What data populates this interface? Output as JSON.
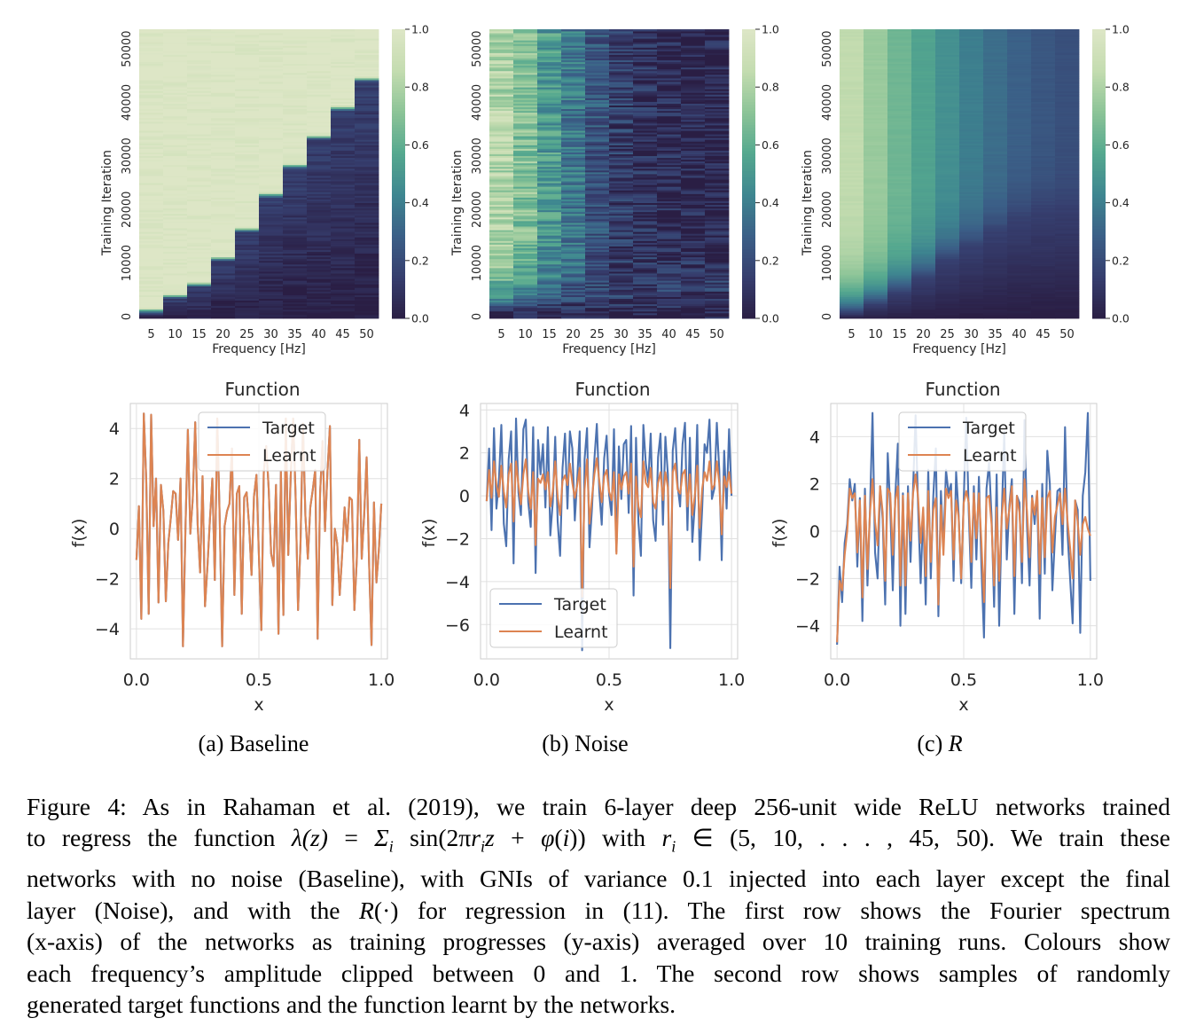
{
  "panels": [
    {
      "id": "baseline",
      "sublabel": "(a) Baseline",
      "spectrum": {
        "type": "heatmap",
        "xlabel": "Frequency [Hz]",
        "ylabel": "Training Iteration",
        "x_ticks": [
          "5",
          "10",
          "15",
          "20",
          "25",
          "30",
          "35",
          "40",
          "45",
          "50"
        ],
        "y_ticks": [
          "0",
          "10000",
          "20000",
          "30000",
          "40000",
          "50000"
        ],
        "colorbar_ticks": [
          "0.0",
          "0.2",
          "0.4",
          "0.6",
          "0.8",
          "1.0"
        ],
        "colormap": [
          "#2a1e44",
          "#363e6e",
          "#3b5f87",
          "#3e8690",
          "#55a88f",
          "#8cc497",
          "#c4dcb0",
          "#dde6c6"
        ],
        "converge_fraction": [
          0.02,
          0.07,
          0.11,
          0.2,
          0.3,
          0.42,
          0.52,
          0.62,
          0.72,
          0.82
        ],
        "final_level": [
          1,
          1,
          1,
          1,
          1,
          1,
          1,
          1,
          1,
          1
        ],
        "noise": 0.05
      },
      "function": {
        "type": "line",
        "title": "Function",
        "xlabel": "x",
        "ylabel": "f(x)",
        "xlim": [
          -0.025,
          1.025
        ],
        "ylim": [
          -5.2,
          5.0
        ],
        "x_ticks": [
          "0.0",
          "0.5",
          "1.0"
        ],
        "y_ticks": [
          "-4",
          "-2",
          "0",
          "2",
          "4"
        ],
        "legend": [
          "Target",
          "Learnt"
        ],
        "legend_loc": "upper center",
        "target": [
          -1.25,
          0.9,
          -3.6,
          4.6,
          1.95,
          -3.4,
          4.55,
          0.1,
          2.0,
          -2.95,
          1.75,
          0.7,
          -2.9,
          -0.6,
          0.4,
          1.5,
          1.4,
          -0.45,
          2.0,
          -4.7,
          -0.05,
          3.95,
          -0.2,
          1.2,
          4.25,
          0.15,
          -1.75,
          2.1,
          -3.1,
          -1.5,
          0.35,
          2.0,
          -2.05,
          4.4,
          0.4,
          -4.7,
          0.1,
          0.7,
          1.0,
          3.2,
          -2.65,
          1.4,
          1.7,
          -3.4,
          1.25,
          1.45,
          0.15,
          -1.85,
          1.3,
          2.15,
          -1.05,
          -4.05,
          2.25,
          3.3,
          1.6,
          -1.0,
          -1.5,
          1.75,
          -4.2,
          2.3,
          -3.45,
          4.4,
          -1.05,
          2.1,
          4.4,
          1.3,
          -3.25,
          -0.6,
          4.2,
          0.5,
          -1.2,
          0.85,
          1.55,
          2.35,
          -4.4,
          1.4,
          3.5,
          -0.1,
          2.25,
          4.1,
          -3.05,
          0.0,
          -0.6,
          -2.65,
          -1.05,
          0.85,
          -0.5,
          1.25,
          1.15,
          -3.25,
          -1.2,
          3.55,
          -1.2,
          0.55,
          2.85,
          -1.35,
          -4.65,
          1.05,
          -2.15,
          -0.85,
          1.0
        ],
        "learnt": [
          -1.25,
          0.9,
          -3.6,
          4.6,
          1.95,
          -3.4,
          4.55,
          0.1,
          2.0,
          -2.95,
          1.75,
          0.7,
          -2.9,
          -0.6,
          0.4,
          1.5,
          1.4,
          -0.45,
          2.0,
          -4.7,
          -0.05,
          3.95,
          -0.2,
          1.2,
          4.25,
          0.15,
          -1.75,
          2.1,
          -3.1,
          -1.5,
          0.35,
          2.0,
          -2.05,
          4.4,
          0.4,
          -4.7,
          0.1,
          0.7,
          1.0,
          3.2,
          -2.65,
          1.4,
          1.7,
          -3.4,
          1.25,
          1.45,
          0.15,
          -1.85,
          1.3,
          2.15,
          -1.05,
          -4.05,
          2.25,
          3.3,
          1.6,
          -1.0,
          -1.5,
          1.75,
          -4.2,
          2.3,
          -3.45,
          4.4,
          -1.05,
          2.1,
          4.4,
          1.3,
          -3.25,
          -0.6,
          4.2,
          0.5,
          -1.2,
          0.85,
          1.55,
          2.35,
          -4.4,
          1.4,
          3.5,
          -0.1,
          2.25,
          4.1,
          -3.05,
          0.0,
          -0.6,
          -2.65,
          -1.05,
          0.85,
          -0.5,
          1.25,
          1.15,
          -3.25,
          -1.2,
          3.55,
          -1.2,
          0.55,
          2.85,
          -1.35,
          -4.65,
          1.05,
          -2.15,
          -0.85,
          1.0
        ]
      }
    },
    {
      "id": "noise",
      "sublabel": "(b) Noise",
      "spectrum": {
        "type": "heatmap",
        "xlabel": "Frequency [Hz]",
        "ylabel": "Training Iteration",
        "x_ticks": [
          "5",
          "10",
          "15",
          "20",
          "25",
          "30",
          "35",
          "40",
          "45",
          "50"
        ],
        "y_ticks": [
          "0",
          "10000",
          "20000",
          "30000",
          "40000",
          "50000"
        ],
        "colorbar_ticks": [
          "0.0",
          "0.2",
          "0.4",
          "0.6",
          "0.8",
          "1.0"
        ],
        "colormap": [
          "#2a1e44",
          "#363e6e",
          "#3b5f87",
          "#3e8690",
          "#55a88f",
          "#8cc497",
          "#c4dcb0",
          "#dde6c6"
        ],
        "converge_fraction": [
          0.03,
          0.04,
          0.05,
          0.06,
          0.07,
          0.08,
          0.09,
          0.1,
          0.11,
          0.12
        ],
        "final_level": [
          0.82,
          0.7,
          0.52,
          0.38,
          0.24,
          0.14,
          0.09,
          0.06,
          0.04,
          0.03
        ],
        "noise": 0.14
      },
      "function": {
        "type": "line",
        "title": "Function",
        "xlabel": "x",
        "ylabel": "f(x)",
        "xlim": [
          -0.025,
          1.025
        ],
        "ylim": [
          -7.6,
          4.3
        ],
        "x_ticks": [
          "0.0",
          "0.5",
          "1.0"
        ],
        "y_ticks": [
          "-6",
          "-4",
          "-2",
          "0",
          "2",
          "4"
        ],
        "legend": [
          "Target",
          "Learnt"
        ],
        "legend_loc": "lower left",
        "target": [
          -0.25,
          2.2,
          -1.6,
          3.15,
          -0.6,
          0.7,
          3.3,
          -1.3,
          -2.35,
          1.7,
          3.0,
          -3.15,
          3.6,
          0.15,
          -0.9,
          3.1,
          3.55,
          -0.3,
          -1.45,
          3.2,
          -3.6,
          2.6,
          1.0,
          2.4,
          -0.55,
          3.2,
          -1.85,
          -0.3,
          2.75,
          -1.2,
          -2.8,
          1.3,
          2.9,
          -0.6,
          3.0,
          2.2,
          -1.15,
          0.8,
          3.0,
          -7.2,
          1.7,
          3.15,
          -2.4,
          -0.6,
          1.7,
          3.35,
          0.2,
          -1.35,
          1.75,
          2.8,
          0.05,
          -0.9,
          3.1,
          -2.6,
          2.3,
          -0.15,
          2.4,
          2.6,
          -0.8,
          3.25,
          -4.65,
          2.7,
          -1.25,
          -2.8,
          3.3,
          1.5,
          0.6,
          2.9,
          -1.15,
          -2.1,
          1.8,
          2.9,
          -1.35,
          2.75,
          1.0,
          -7.1,
          2.1,
          3.15,
          0.45,
          -0.5,
          2.4,
          3.4,
          -1.6,
          2.7,
          -2.15,
          -0.4,
          3.3,
          -3.0,
          -0.65,
          2.4,
          2.0,
          3.55,
          -0.15,
          0.35,
          3.4,
          1.2,
          -3.0,
          2.1,
          -0.6,
          3.1,
          0.0
        ],
        "learnt": [
          -0.25,
          1.2,
          -0.1,
          1.6,
          0.5,
          -0.05,
          1.4,
          0.2,
          -0.55,
          1.0,
          1.5,
          -1.2,
          1.6,
          0.5,
          -0.4,
          1.0,
          1.7,
          0.2,
          -0.6,
          1.1,
          -2.3,
          0.8,
          0.6,
          1.0,
          0.3,
          1.1,
          -0.5,
          0.2,
          1.6,
          -0.05,
          -0.9,
          0.7,
          0.95,
          0.5,
          1.5,
          0.6,
          -0.1,
          0.5,
          1.3,
          -4.7,
          0.3,
          1.7,
          -1.3,
          -0.1,
          1.0,
          1.75,
          0.7,
          -0.3,
          0.9,
          1.2,
          0.2,
          -0.2,
          1.1,
          -2.7,
          1.0,
          0.3,
          0.9,
          1.1,
          0.1,
          1.5,
          -3.3,
          0.9,
          -0.5,
          -1.0,
          1.6,
          0.6,
          0.4,
          1.3,
          -0.3,
          -0.6,
          0.6,
          1.1,
          -0.2,
          1.1,
          0.4,
          -4.3,
          1.1,
          1.5,
          0.3,
          0.1,
          1.0,
          1.2,
          -0.5,
          1.0,
          -0.9,
          0.0,
          1.4,
          -1.5,
          0.3,
          1.1,
          0.7,
          1.6,
          0.3,
          0.5,
          1.6,
          0.6,
          -1.8,
          0.9,
          0.4,
          1.1,
          0.1
        ]
      }
    },
    {
      "id": "R",
      "sublabel_prefix": "(c)",
      "sublabel_symbol": "R",
      "spectrum": {
        "type": "heatmap",
        "xlabel": "Frequency [Hz]",
        "ylabel": "Training Iteration",
        "x_ticks": [
          "5",
          "10",
          "15",
          "20",
          "25",
          "30",
          "35",
          "40",
          "45",
          "50"
        ],
        "y_ticks": [
          "0",
          "10000",
          "20000",
          "30000",
          "40000",
          "50000"
        ],
        "colorbar_ticks": [
          "0.0",
          "0.2",
          "0.4",
          "0.6",
          "0.8",
          "1.0"
        ],
        "colormap": [
          "#2a1e44",
          "#363e6e",
          "#3b5f87",
          "#3e8690",
          "#55a88f",
          "#8cc497",
          "#c4dcb0",
          "#dde6c6"
        ],
        "converge_fraction": [
          0.02,
          0.05,
          0.09,
          0.14,
          0.2,
          0.25,
          0.3,
          0.35,
          0.38,
          0.4
        ],
        "final_level": [
          0.85,
          0.75,
          0.64,
          0.55,
          0.47,
          0.4,
          0.34,
          0.29,
          0.25,
          0.22
        ],
        "noise": 0.01
      },
      "function": {
        "type": "line",
        "title": "Function",
        "xlabel": "x",
        "ylabel": "f(x)",
        "xlim": [
          -0.025,
          1.025
        ],
        "ylim": [
          -5.4,
          5.4
        ],
        "x_ticks": [
          "0.0",
          "0.5",
          "1.0"
        ],
        "y_ticks": [
          "-4",
          "-2",
          "0",
          "2",
          "4"
        ],
        "legend": [
          "Target",
          "Learnt"
        ],
        "legend_loc": "upper center",
        "target": [
          -4.8,
          -1.5,
          -3.0,
          -0.5,
          0.3,
          2.2,
          1.3,
          2.0,
          -1.5,
          1.4,
          -3.8,
          1.8,
          -2.3,
          0.9,
          5.0,
          -0.9,
          -2.0,
          1.9,
          0.5,
          -3.1,
          3.3,
          1.0,
          -2.5,
          1.5,
          3.7,
          -4.0,
          1.6,
          -3.5,
          1.9,
          -1.3,
          1.8,
          4.9,
          1.0,
          -2.2,
          0.9,
          -3.1,
          2.6,
          -2.0,
          1.5,
          3.5,
          -3.6,
          1.7,
          -0.7,
          2.6,
          1.6,
          2.0,
          -2.1,
          2.5,
          0.7,
          -2.2,
          1.3,
          4.8,
          0.8,
          -2.4,
          1.9,
          -1.2,
          2.3,
          -1.5,
          -4.5,
          1.8,
          2.9,
          0.6,
          -3.2,
          2.4,
          -4.0,
          0.6,
          4.2,
          -1.2,
          1.1,
          2.2,
          -3.5,
          1.5,
          1.2,
          -2.2,
          4.7,
          0.2,
          -2.3,
          1.5,
          0.3,
          1.7,
          -3.7,
          2.0,
          -1.8,
          3.4,
          2.0,
          -2.5,
          -0.3,
          1.7,
          1.8,
          -1.0,
          4.4,
          -0.1,
          -2.0,
          -3.9,
          1.3,
          0.9,
          -4.3,
          1.5,
          2.5,
          5.0,
          -2.1
        ],
        "learnt": [
          -4.7,
          -2.1,
          -2.5,
          -1.0,
          0.0,
          1.8,
          1.4,
          1.6,
          -0.9,
          1.3,
          -2.8,
          1.5,
          -1.6,
          0.8,
          2.2,
          0.4,
          -0.6,
          1.9,
          0.8,
          -2.1,
          1.8,
          1.6,
          -1.0,
          1.3,
          1.9,
          -2.3,
          1.5,
          -2.3,
          1.6,
          -0.4,
          1.6,
          2.4,
          1.4,
          -0.5,
          1.0,
          -1.9,
          1.7,
          -1.3,
          0.9,
          1.4,
          -3.1,
          1.1,
          -1.0,
          1.8,
          1.4,
          1.7,
          -1.2,
          1.3,
          0.6,
          -2.0,
          1.2,
          1.7,
          1.2,
          -1.3,
          1.6,
          -0.3,
          1.6,
          -0.5,
          -3.0,
          1.4,
          1.5,
          0.3,
          -2.3,
          1.0,
          -2.1,
          0.6,
          1.8,
          0.1,
          0.9,
          1.9,
          -1.9,
          1.5,
          0.8,
          -1.3,
          2.2,
          0.8,
          -1.1,
          1.4,
          0.7,
          1.7,
          -1.8,
          1.4,
          -1.1,
          1.4,
          1.7,
          -0.9,
          0.6,
          1.1,
          1.6,
          0.3,
          1.8,
          0.4,
          -0.7,
          -2.0,
          1.3,
          0.4,
          -1.0,
          0.3,
          0.6,
          0.1,
          -0.2
        ]
      }
    }
  ],
  "caption": {
    "lines": [
      [
        "Figure 4: As in Rahaman et al. (2019), we train 6-layer deep 256-unit wide ReLU networks trained"
      ],
      [
        "to regress the function ",
        {
          "m": "λ(z)"
        },
        " = ",
        {
          "m": "Σ"
        },
        {
          "sub": "i"
        },
        " sin(2π",
        {
          "m": "r"
        },
        {
          "sub": "i"
        },
        {
          "m": "z"
        },
        " + ",
        {
          "m": "φ"
        },
        "(",
        {
          "m": "i"
        },
        ")) with ",
        {
          "m": "r"
        },
        {
          "sub": "i"
        },
        " ∈ (5, 10, . . . , 45, 50). We train these"
      ],
      [
        "networks with no noise (Baseline), with GNIs of variance 0.1 injected into each layer except the final"
      ],
      [
        "layer (Noise), and with the ",
        {
          "m": "R"
        },
        "(·) for regression in (11). The first row shows the Fourier spectrum"
      ],
      [
        "(x-axis) of the networks as training progresses (y-axis) averaged over 10 training runs. Colours show"
      ],
      [
        "each frequency’s amplitude clipped between 0 and 1. The second row shows samples of randomly"
      ],
      [
        "generated target functions and the function learnt by the networks."
      ]
    ]
  },
  "colors": {
    "target": "#4c72b0",
    "learnt": "#dd8452",
    "axes_bg": "#ffffff",
    "grid": "#e0e0e0",
    "spine": "#cccccc"
  }
}
